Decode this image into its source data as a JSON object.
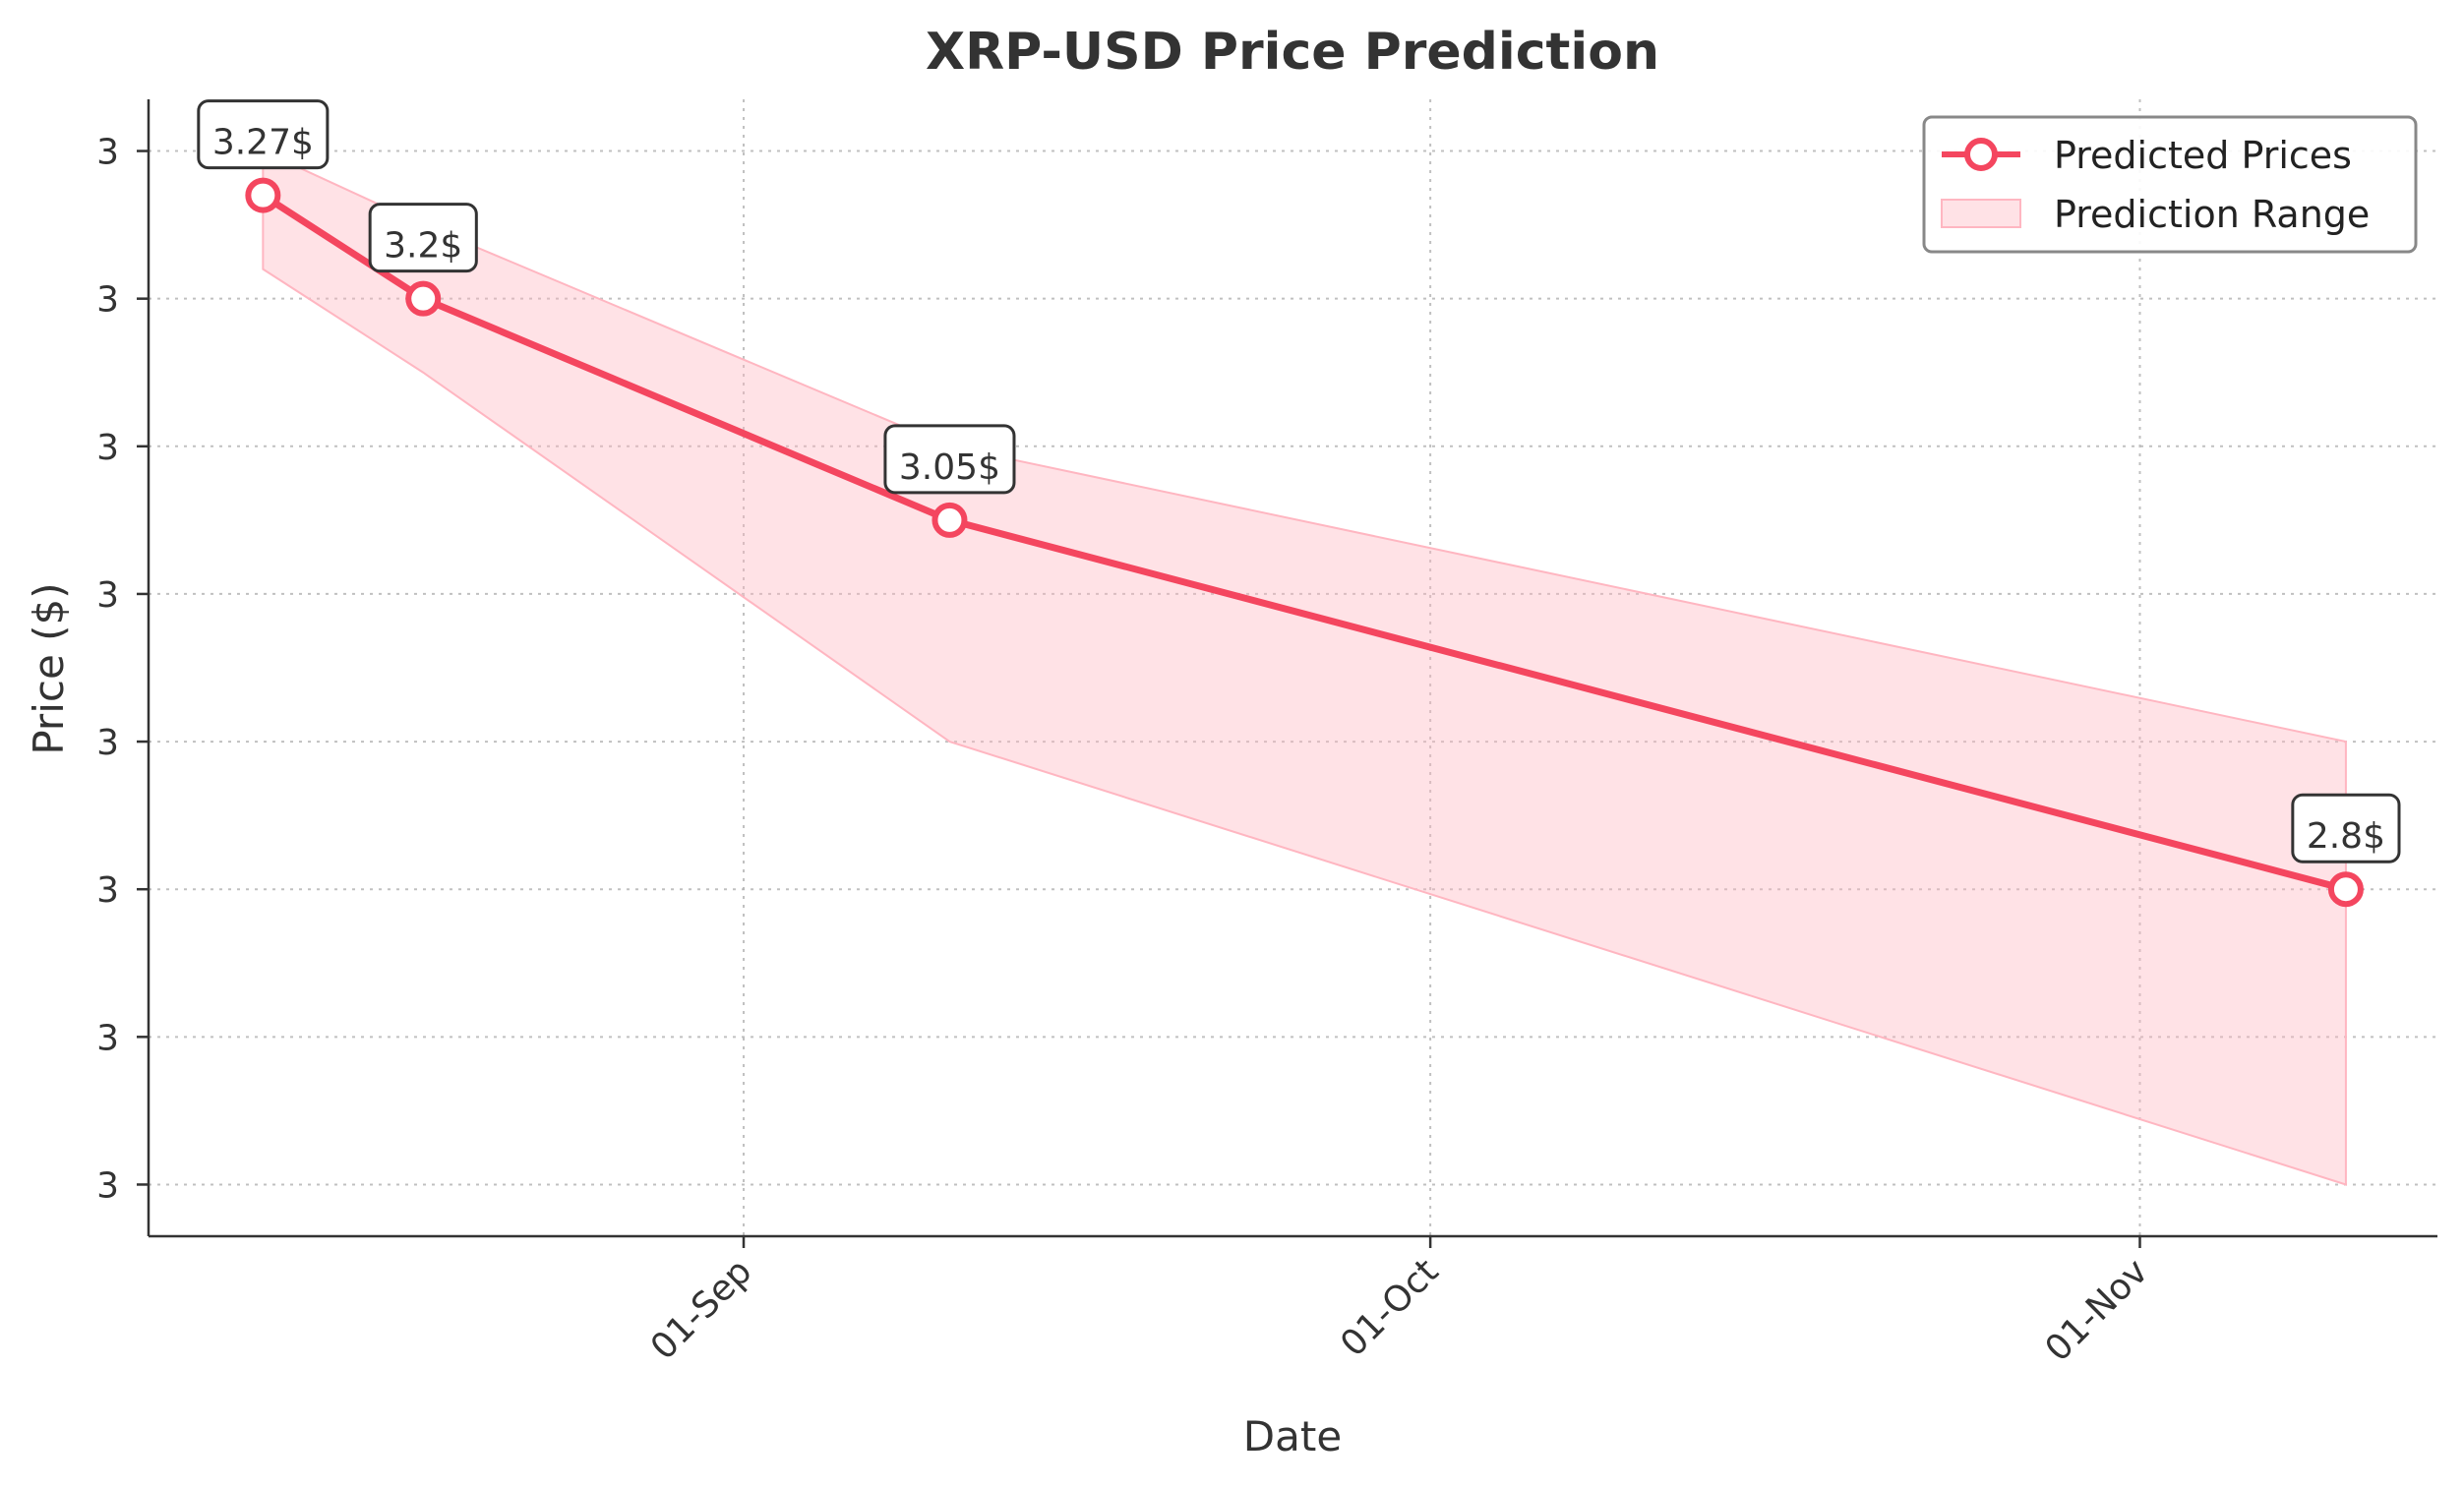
{
  "chart_data": {
    "type": "line",
    "title": "XRP-USD Price Prediction",
    "xlabel": "Date",
    "ylabel": "Price ($)",
    "x_tick_labels": [
      "01-Sep",
      "01-Oct",
      "01-Nov"
    ],
    "x_tick_dates": [
      "2025-09-01",
      "2025-10-01",
      "2025-11-01"
    ],
    "y_tick_labels": [
      "3",
      "3",
      "3",
      "3",
      "3",
      "3",
      "3",
      "3"
    ],
    "y_tick_values": [
      3.3,
      3.2,
      3.1,
      3.0,
      2.9,
      2.8,
      2.7,
      2.6
    ],
    "xlim": [
      "2025-08-06",
      "2025-11-14"
    ],
    "ylim": [
      2.565,
      3.335
    ],
    "grid": true,
    "legend_position": "top-right",
    "series": [
      {
        "name": "Predicted Prices",
        "color": "#f4465f",
        "points": [
          {
            "date": "2025-08-11",
            "value": 3.27,
            "label": "3.27$"
          },
          {
            "date": "2025-08-18",
            "value": 3.2,
            "label": "3.2$"
          },
          {
            "date": "2025-09-10",
            "value": 3.05,
            "label": "3.05$"
          },
          {
            "date": "2025-11-10",
            "value": 2.8,
            "label": "2.8$"
          }
        ]
      }
    ],
    "range": {
      "name": "Prediction Range",
      "color": "#ffb6c1",
      "points": [
        {
          "date": "2025-08-11",
          "low": 3.22,
          "high": 3.3
        },
        {
          "date": "2025-08-18",
          "low": 3.15,
          "high": 3.25
        },
        {
          "date": "2025-09-10",
          "low": 2.9,
          "high": 3.1
        },
        {
          "date": "2025-11-10",
          "low": 2.6,
          "high": 2.9
        }
      ]
    }
  }
}
